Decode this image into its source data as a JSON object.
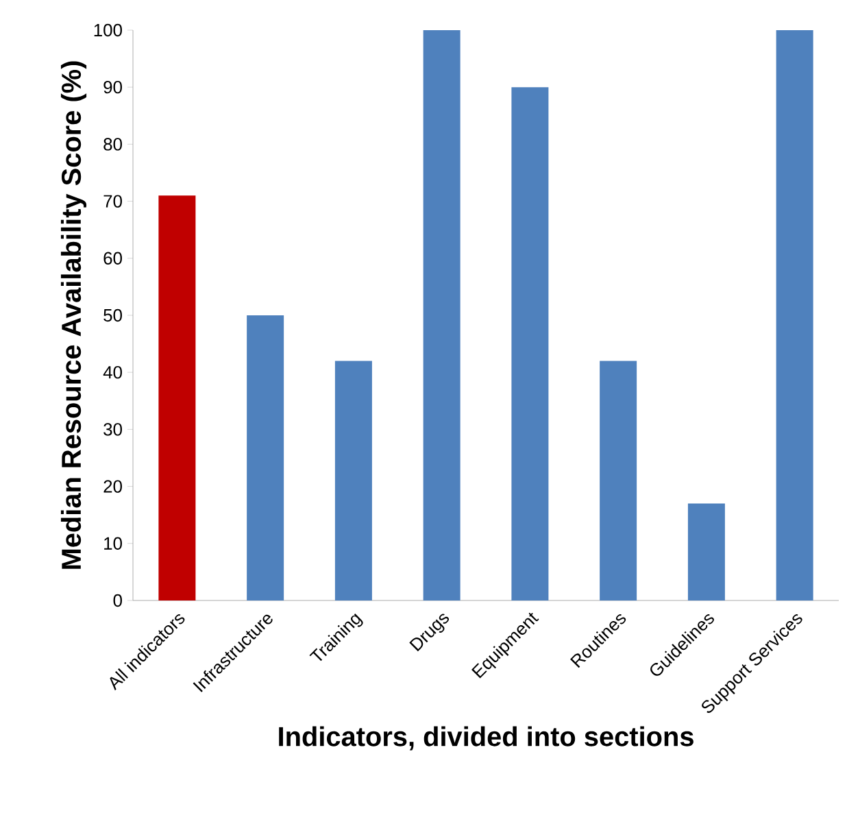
{
  "chart_data": {
    "type": "bar",
    "xlabel": "Indicators, divided into sections",
    "ylabel": "Median Resource Availability Score (%)",
    "categories": [
      "All indicators",
      "Infrastructure",
      "Training",
      "Drugs",
      "Equipment",
      "Routines",
      "Guidelines",
      "Support Services"
    ],
    "values": [
      71,
      50,
      42,
      100,
      90,
      42,
      17,
      100
    ],
    "colors": [
      "#c00000",
      "#4f81bd",
      "#4f81bd",
      "#4f81bd",
      "#4f81bd",
      "#4f81bd",
      "#4f81bd",
      "#4f81bd"
    ],
    "ylim": [
      0,
      100
    ],
    "yticks": [
      0,
      10,
      20,
      30,
      40,
      50,
      60,
      70,
      80,
      90,
      100
    ]
  }
}
